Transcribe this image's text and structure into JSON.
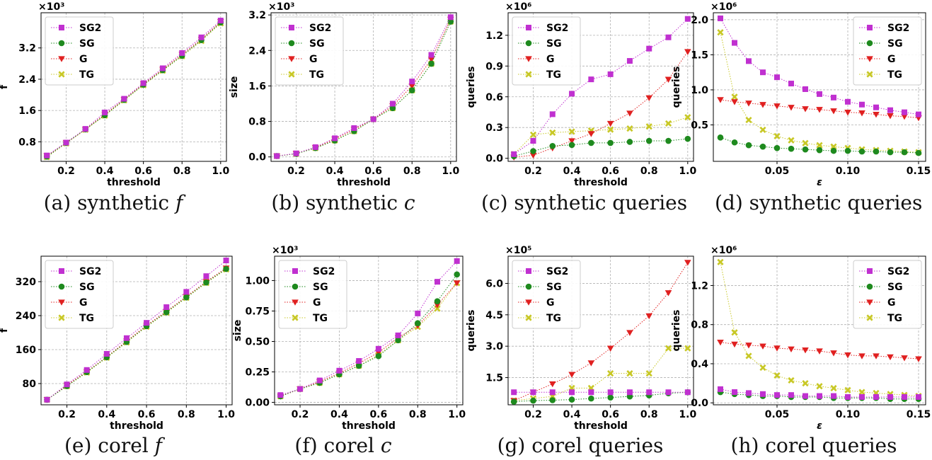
{
  "colors": {
    "SG2": "#c030d0",
    "SG": "#1e8a1e",
    "G": "#e02020",
    "TG": "#c8c826",
    "grid": "#b0b0b0"
  },
  "legend_labels": [
    "SG2",
    "SG",
    "G",
    "TG"
  ],
  "captions": [
    {
      "prefix": "(a)  synthetic ",
      "var": "f"
    },
    {
      "prefix": "(b)  synthetic ",
      "var": "c"
    },
    {
      "prefix": "(c)  synthetic queries",
      "var": ""
    },
    {
      "prefix": "(d)  synthetic queries",
      "var": ""
    },
    {
      "prefix": "(e)  corel ",
      "var": "f"
    },
    {
      "prefix": "(f)  corel ",
      "var": "c"
    },
    {
      "prefix": "(g)  corel queries",
      "var": ""
    },
    {
      "prefix": "(h)  corel queries",
      "var": ""
    }
  ],
  "chart_data": [
    {
      "type": "line",
      "title": "",
      "xlabel": "threshold",
      "ylabel": "f",
      "multiplier": "×10³",
      "xlim": [
        0.07,
        1.03
      ],
      "ylim": [
        0.3,
        4.1
      ],
      "legend": "top-left",
      "xticks": [
        0.2,
        0.4,
        0.6,
        0.8,
        1.0
      ],
      "xtick_labels": [
        "0.2",
        "0.4",
        "0.6",
        "0.8",
        "1.0"
      ],
      "yticks": [
        0.8,
        1.6,
        2.4,
        3.2
      ],
      "ytick_labels": [
        "0.8",
        "1.6",
        "2.4",
        "3.2"
      ],
      "x": [
        0.1,
        0.2,
        0.3,
        0.4,
        0.5,
        0.6,
        0.7,
        0.8,
        0.9,
        1.0
      ],
      "series": [
        {
          "name": "SG2",
          "values": [
            0.45,
            0.78,
            1.13,
            1.55,
            1.9,
            2.3,
            2.68,
            3.07,
            3.47,
            3.9
          ]
        },
        {
          "name": "SG",
          "values": [
            0.42,
            0.77,
            1.12,
            1.48,
            1.87,
            2.26,
            2.63,
            3.0,
            3.4,
            3.85
          ]
        },
        {
          "name": "G",
          "values": [
            0.44,
            0.78,
            1.12,
            1.5,
            1.88,
            2.28,
            2.65,
            3.03,
            3.42,
            3.87
          ]
        },
        {
          "name": "TG",
          "values": [
            0.41,
            0.76,
            1.11,
            1.47,
            1.86,
            2.25,
            2.62,
            2.99,
            3.38,
            3.83
          ]
        }
      ]
    },
    {
      "type": "line",
      "title": "",
      "xlabel": "threshold",
      "ylabel": "size",
      "multiplier": "×10³",
      "xlim": [
        0.07,
        1.03
      ],
      "ylim": [
        -0.1,
        3.25
      ],
      "legend": "top-left",
      "xticks": [
        0.2,
        0.4,
        0.6,
        0.8,
        1.0
      ],
      "xtick_labels": [
        "0.2",
        "0.4",
        "0.6",
        "0.8",
        "1.0"
      ],
      "yticks": [
        0.0,
        0.8,
        1.6,
        2.4,
        3.2
      ],
      "ytick_labels": [
        "0.0",
        "0.8",
        "1.6",
        "2.4",
        "3.2"
      ],
      "x": [
        0.1,
        0.2,
        0.3,
        0.4,
        0.5,
        0.6,
        0.7,
        0.8,
        0.9,
        1.0
      ],
      "series": [
        {
          "name": "SG2",
          "values": [
            0.02,
            0.08,
            0.22,
            0.42,
            0.65,
            0.85,
            1.2,
            1.7,
            2.3,
            3.15
          ]
        },
        {
          "name": "SG",
          "values": [
            0.02,
            0.07,
            0.2,
            0.37,
            0.58,
            0.85,
            1.1,
            1.5,
            2.1,
            3.05
          ]
        },
        {
          "name": "G",
          "values": [
            0.02,
            0.08,
            0.21,
            0.4,
            0.62,
            0.85,
            1.15,
            1.6,
            2.2,
            3.1
          ]
        },
        {
          "name": "TG",
          "values": [
            0.02,
            0.07,
            0.2,
            0.37,
            0.58,
            0.85,
            1.1,
            1.5,
            2.1,
            3.05
          ]
        }
      ]
    },
    {
      "type": "line",
      "title": "",
      "xlabel": "threshold",
      "ylabel": "queries",
      "multiplier": "×10⁶",
      "xlim": [
        0.07,
        1.03
      ],
      "ylim": [
        -0.03,
        1.42
      ],
      "legend": "top-left",
      "xticks": [
        0.2,
        0.4,
        0.6,
        0.8,
        1.0
      ],
      "xtick_labels": [
        "0.2",
        "0.4",
        "0.6",
        "0.8",
        "1.0"
      ],
      "yticks": [
        0.0,
        0.3,
        0.6,
        0.9,
        1.2
      ],
      "ytick_labels": [
        "0.0",
        "0.3",
        "0.6",
        "0.9",
        "1.2"
      ],
      "x": [
        0.1,
        0.2,
        0.3,
        0.4,
        0.5,
        0.6,
        0.7,
        0.8,
        0.9,
        1.0
      ],
      "series": [
        {
          "name": "SG2",
          "values": [
            0.04,
            0.17,
            0.43,
            0.63,
            0.77,
            0.82,
            0.95,
            1.07,
            1.18,
            1.36
          ]
        },
        {
          "name": "SG",
          "values": [
            0.02,
            0.07,
            0.12,
            0.13,
            0.15,
            0.15,
            0.16,
            0.17,
            0.17,
            0.19
          ]
        },
        {
          "name": "G",
          "values": [
            0.01,
            0.03,
            0.1,
            0.17,
            0.24,
            0.34,
            0.44,
            0.59,
            0.77,
            1.04
          ]
        },
        {
          "name": "TG",
          "values": [
            0.04,
            0.23,
            0.25,
            0.26,
            0.27,
            0.28,
            0.29,
            0.31,
            0.34,
            0.4
          ]
        }
      ]
    },
    {
      "type": "line",
      "title": "",
      "xlabel": "ε",
      "ylabel": "queries",
      "multiplier": "×10⁶",
      "xlim": [
        0.005,
        0.155
      ],
      "ylim": [
        -0.02,
        2.1
      ],
      "legend": "top-right",
      "xticks": [
        0.05,
        0.1,
        0.15
      ],
      "xtick_labels": [
        "0.05",
        "0.10",
        "0.15"
      ],
      "yticks": [
        0.5,
        1.0,
        1.5,
        2.0
      ],
      "ytick_labels": [
        "0.5",
        "1.0",
        "1.5",
        "2.0"
      ],
      "x": [
        0.01,
        0.02,
        0.03,
        0.04,
        0.05,
        0.06,
        0.07,
        0.08,
        0.09,
        0.1,
        0.11,
        0.12,
        0.13,
        0.14,
        0.15
      ],
      "series": [
        {
          "name": "SG2",
          "values": [
            2.02,
            1.67,
            1.41,
            1.25,
            1.18,
            1.09,
            1.01,
            0.94,
            0.89,
            0.83,
            0.79,
            0.75,
            0.71,
            0.68,
            0.65
          ]
        },
        {
          "name": "SG",
          "values": [
            0.32,
            0.25,
            0.21,
            0.19,
            0.17,
            0.16,
            0.15,
            0.14,
            0.13,
            0.13,
            0.12,
            0.12,
            0.11,
            0.11,
            0.1
          ]
        },
        {
          "name": "G",
          "values": [
            0.86,
            0.83,
            0.81,
            0.79,
            0.77,
            0.75,
            0.73,
            0.72,
            0.7,
            0.68,
            0.67,
            0.65,
            0.63,
            0.62,
            0.6
          ]
        },
        {
          "name": "TG",
          "values": [
            1.82,
            0.9,
            0.57,
            0.43,
            0.34,
            0.28,
            0.24,
            0.21,
            0.19,
            0.17,
            0.15,
            0.14,
            0.13,
            0.12,
            0.11
          ]
        }
      ]
    },
    {
      "type": "line",
      "title": "",
      "xlabel": "threshold",
      "ylabel": "f",
      "multiplier": "",
      "xlim": [
        0.07,
        1.03
      ],
      "ylim": [
        30,
        380
      ],
      "legend": "top-left",
      "xticks": [
        0.2,
        0.4,
        0.6,
        0.8,
        1.0
      ],
      "xtick_labels": [
        "0.2",
        "0.4",
        "0.6",
        "0.8",
        "1.0"
      ],
      "yticks": [
        80,
        160,
        240,
        320
      ],
      "ytick_labels": [
        "80",
        "160",
        "240",
        "320"
      ],
      "x": [
        0.1,
        0.2,
        0.3,
        0.4,
        0.5,
        0.6,
        0.7,
        0.8,
        0.9,
        1.0
      ],
      "series": [
        {
          "name": "SG2",
          "values": [
            42,
            78,
            112,
            150,
            187,
            223,
            260,
            296,
            333,
            370
          ]
        },
        {
          "name": "SG",
          "values": [
            42,
            74,
            107,
            142,
            178,
            215,
            248,
            283,
            318,
            350
          ]
        },
        {
          "name": "G",
          "values": [
            42,
            76,
            108,
            143,
            180,
            217,
            250,
            285,
            320,
            352
          ]
        },
        {
          "name": "TG",
          "values": [
            42,
            74,
            106,
            141,
            177,
            214,
            247,
            282,
            317,
            349
          ]
        }
      ]
    },
    {
      "type": "line",
      "title": "",
      "xlabel": "threshold",
      "ylabel": "size",
      "multiplier": "×10³",
      "xlim": [
        0.07,
        1.03
      ],
      "ylim": [
        -0.02,
        1.2
      ],
      "legend": "top-left",
      "xticks": [
        0.2,
        0.4,
        0.6,
        0.8,
        1.0
      ],
      "xtick_labels": [
        "0.2",
        "0.4",
        "0.6",
        "0.8",
        "1.0"
      ],
      "yticks": [
        0.0,
        0.25,
        0.5,
        0.75,
        1.0
      ],
      "ytick_labels": [
        "0.00",
        "0.25",
        "0.50",
        "0.75",
        "1.00"
      ],
      "x": [
        0.1,
        0.2,
        0.3,
        0.4,
        0.5,
        0.6,
        0.7,
        0.8,
        0.9,
        1.0
      ],
      "series": [
        {
          "name": "SG2",
          "values": [
            0.06,
            0.11,
            0.18,
            0.26,
            0.34,
            0.44,
            0.55,
            0.73,
            0.99,
            1.16
          ]
        },
        {
          "name": "SG",
          "values": [
            0.05,
            0.11,
            0.16,
            0.23,
            0.3,
            0.38,
            0.51,
            0.65,
            0.83,
            1.05
          ]
        },
        {
          "name": "G",
          "values": [
            0.05,
            0.11,
            0.17,
            0.24,
            0.32,
            0.41,
            0.53,
            0.63,
            0.8,
            0.98
          ]
        },
        {
          "name": "TG",
          "values": [
            0.05,
            0.11,
            0.16,
            0.23,
            0.3,
            0.39,
            0.51,
            0.62,
            0.77,
            0.98
          ]
        }
      ]
    },
    {
      "type": "line",
      "title": "",
      "xlabel": "threshold",
      "ylabel": "queries",
      "multiplier": "×10⁵",
      "xlim": [
        0.07,
        1.03
      ],
      "ylim": [
        0.2,
        7.3
      ],
      "legend": "top-left",
      "xticks": [
        0.2,
        0.4,
        0.6,
        0.8,
        1.0
      ],
      "xtick_labels": [
        "0.2",
        "0.4",
        "0.6",
        "0.8",
        "1.0"
      ],
      "yticks": [
        1.5,
        3.0,
        4.5,
        6.0
      ],
      "ytick_labels": [
        "1.5",
        "3.0",
        "4.5",
        "6.0"
      ],
      "x": [
        0.1,
        0.2,
        0.3,
        0.4,
        0.5,
        0.6,
        0.7,
        0.8,
        0.9,
        1.0
      ],
      "series": [
        {
          "name": "SG2",
          "values": [
            0.8,
            0.8,
            0.8,
            0.8,
            0.8,
            0.8,
            0.8,
            0.8,
            0.8,
            0.8
          ]
        },
        {
          "name": "SG",
          "values": [
            0.35,
            0.4,
            0.42,
            0.45,
            0.5,
            0.55,
            0.6,
            0.65,
            0.75,
            0.8
          ]
        },
        {
          "name": "G",
          "values": [
            0.4,
            0.8,
            1.2,
            1.65,
            2.2,
            2.9,
            3.65,
            4.45,
            5.55,
            7.0
          ]
        },
        {
          "name": "TG",
          "values": [
            0.4,
            0.5,
            0.6,
            1.0,
            1.0,
            1.7,
            1.7,
            1.7,
            2.9,
            2.9
          ]
        }
      ]
    },
    {
      "type": "line",
      "title": "",
      "xlabel": "ε",
      "ylabel": "queries",
      "multiplier": "×10⁶",
      "xlim": [
        0.005,
        0.155
      ],
      "ylim": [
        -0.02,
        1.5
      ],
      "legend": "top-right",
      "xticks": [
        0.05,
        0.1,
        0.15
      ],
      "xtick_labels": [
        "0.05",
        "0.10",
        "0.15"
      ],
      "yticks": [
        0.0,
        0.4,
        0.8,
        1.2
      ],
      "ytick_labels": [
        "0.0",
        "0.4",
        "0.8",
        "1.2"
      ],
      "x": [
        0.01,
        0.02,
        0.03,
        0.04,
        0.05,
        0.06,
        0.07,
        0.08,
        0.09,
        0.1,
        0.11,
        0.12,
        0.13,
        0.14,
        0.15
      ],
      "series": [
        {
          "name": "SG2",
          "values": [
            0.14,
            0.11,
            0.1,
            0.09,
            0.08,
            0.08,
            0.07,
            0.07,
            0.07,
            0.06,
            0.06,
            0.06,
            0.06,
            0.06,
            0.06
          ]
        },
        {
          "name": "SG",
          "values": [
            0.11,
            0.09,
            0.08,
            0.07,
            0.07,
            0.06,
            0.06,
            0.06,
            0.05,
            0.05,
            0.05,
            0.05,
            0.04,
            0.04,
            0.04
          ]
        },
        {
          "name": "G",
          "values": [
            0.62,
            0.6,
            0.59,
            0.58,
            0.56,
            0.55,
            0.54,
            0.53,
            0.51,
            0.49,
            0.48,
            0.48,
            0.47,
            0.46,
            0.45
          ]
        },
        {
          "name": "TG",
          "values": [
            1.44,
            0.72,
            0.48,
            0.36,
            0.28,
            0.23,
            0.2,
            0.17,
            0.15,
            0.13,
            0.11,
            0.1,
            0.09,
            0.08,
            0.07
          ]
        }
      ]
    }
  ]
}
